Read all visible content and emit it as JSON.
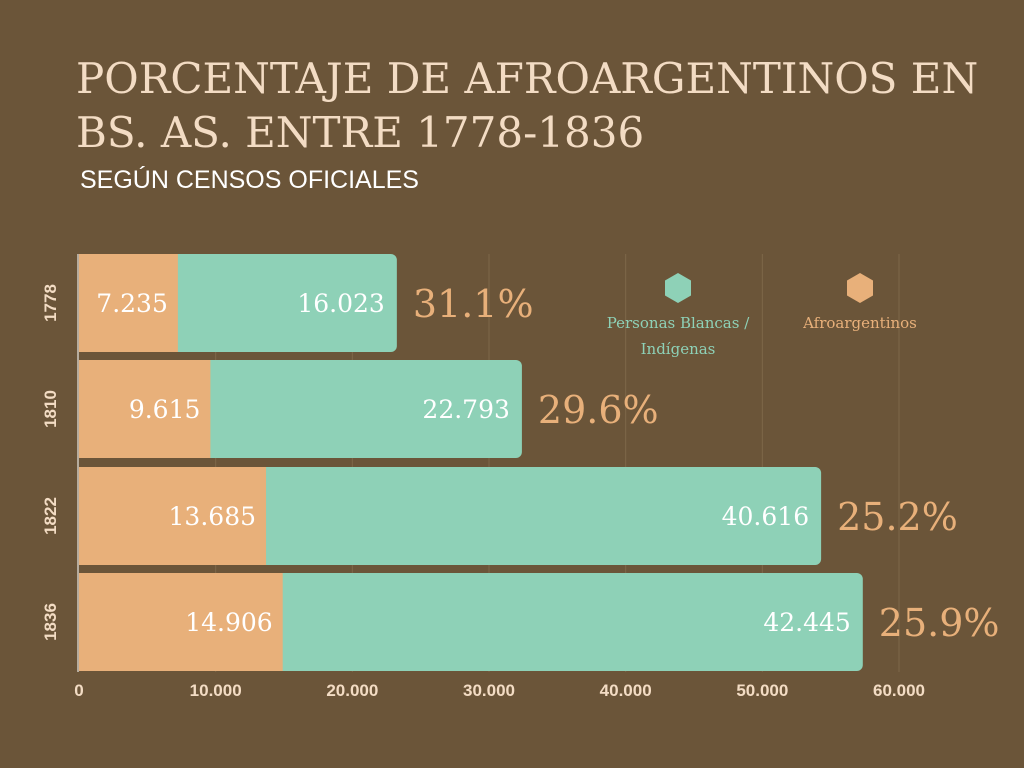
{
  "title": "PORCENTAJE DE AFROARGENTINOS EN BS. AS. ENTRE 1778-1836",
  "subtitle": "SEGÚN CENSOS OFICIALES",
  "colors": {
    "background": "#6b5539",
    "afro": "#e8b07a",
    "white_indigenous": "#8ed1b7",
    "title": "#f3dcc4",
    "bar_label": "#ffffff",
    "axis_label": "#f3dcc4",
    "legend_teal_text": "#8ed1b7",
    "legend_orange_text": "#e8b07a",
    "percent_text": "#e8b07a"
  },
  "legend": {
    "white_indigenous": {
      "label": "Personas Blancas / Indígenas",
      "icon": "hexagon-icon"
    },
    "afro": {
      "label": "Afroargentinos",
      "icon": "hexagon-icon"
    }
  },
  "chart_data": {
    "type": "bar",
    "orientation": "horizontal",
    "stacked": true,
    "categories": [
      "1778",
      "1810",
      "1822",
      "1836"
    ],
    "series": [
      {
        "name": "Afroargentinos",
        "values": [
          7235,
          9615,
          13685,
          14906
        ],
        "labels": [
          "7.235",
          "9.615",
          "13.685",
          "14.906"
        ]
      },
      {
        "name": "Personas Blancas / Indígenas",
        "values": [
          16023,
          22793,
          40616,
          42445
        ],
        "labels": [
          "16.023",
          "22.793",
          "40.616",
          "42.445"
        ]
      }
    ],
    "percent_labels": [
      "31.1%",
      "29.6%",
      "25.2%",
      "25.9%"
    ],
    "xlim": [
      0,
      60000
    ],
    "xticks": [
      0,
      10000,
      20000,
      30000,
      40000,
      50000,
      60000
    ],
    "xtick_labels": [
      "0",
      "10.000",
      "20.000",
      "30.000",
      "40.000",
      "50.000",
      "60.000"
    ],
    "grid": true,
    "legend_position": "top-right"
  }
}
